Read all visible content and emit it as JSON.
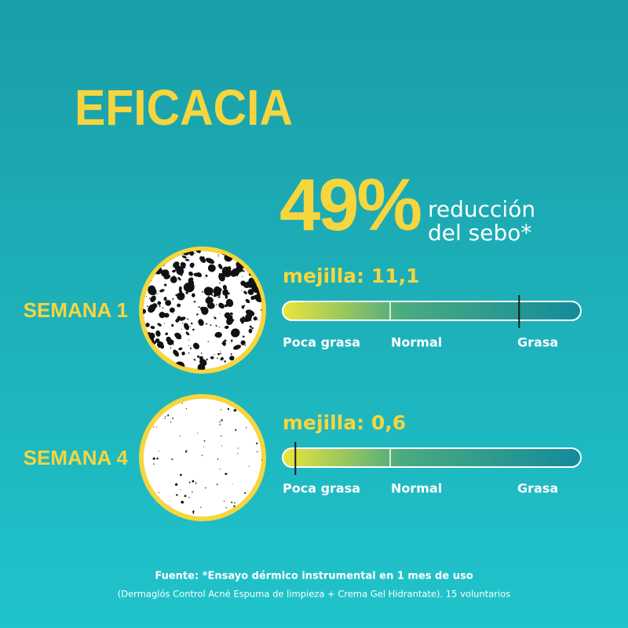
{
  "title": "EFICACIA",
  "headline": {
    "value": "49%",
    "text_line1": "reducción",
    "text_line2": "del sebo*"
  },
  "scale_labels": [
    "Poca grasa",
    "Normal",
    "Grasa"
  ],
  "xlim": [
    0,
    14
  ],
  "weeks": [
    {
      "label": "SEMANA 1",
      "reading": "mejilla: 11,1",
      "value": 11.1
    },
    {
      "label": "SEMANA 4",
      "reading": "mejilla: 0,6",
      "value": 0.6
    }
  ],
  "footer": {
    "line1": "Fuente: *Ensayo dérmico instrumental en 1 mes de uso",
    "line2": "(Dermaglós Control Acné Espuma de limpieza + Crema Gel Hidrantate). 15 voluntarios"
  }
}
